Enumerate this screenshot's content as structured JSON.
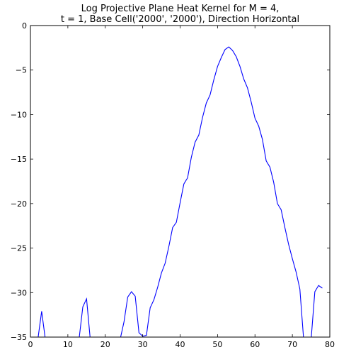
{
  "chart_data": {
    "type": "line",
    "title_lines": [
      "Log Projective Plane Heat Kernel for M = 4,",
      "t = 1, Base Cell('2000', '2000'), Direction Horizontal"
    ],
    "xlabel": "",
    "ylabel": "",
    "xlim": [
      0,
      80
    ],
    "ylim": [
      -35,
      0
    ],
    "xticks": [
      0,
      10,
      20,
      30,
      40,
      50,
      60,
      70,
      80
    ],
    "yticks": [
      0,
      -5,
      -10,
      -15,
      -20,
      -25,
      -30,
      -35
    ],
    "xtick_labels": [
      "0",
      "10",
      "20",
      "30",
      "40",
      "50",
      "60",
      "70",
      "80"
    ],
    "ytick_labels": [
      "0",
      "−5",
      "−10",
      "−15",
      "−20",
      "−25",
      "−30",
      "−35"
    ],
    "grid": false,
    "series": [
      {
        "color": "#0000ff",
        "x": [
          1,
          2,
          3,
          4,
          5,
          6,
          7,
          8,
          9,
          10,
          11,
          12,
          13,
          14,
          15,
          16,
          17,
          18,
          19,
          20,
          21,
          22,
          23,
          24,
          25,
          26,
          27,
          28,
          29,
          30,
          31,
          32,
          33,
          34,
          35,
          36,
          37,
          38,
          39,
          40,
          41,
          42,
          43,
          44,
          45,
          46,
          47,
          48,
          49,
          50,
          51,
          52,
          53,
          54,
          55,
          56,
          57,
          58,
          59,
          60,
          61,
          62,
          63,
          64,
          65,
          66,
          67,
          68,
          69,
          70,
          71,
          72,
          73,
          74,
          75,
          76,
          77,
          78
        ],
        "y": [
          -35.5,
          -35.2,
          -32.1,
          -35.3,
          -35.4,
          -35.5,
          -35.4,
          -35.5,
          -35.3,
          -35.5,
          -35.4,
          -35.3,
          -35.2,
          -31.6,
          -30.7,
          -35.3,
          -35.4,
          -35.5,
          -35.3,
          -35.2,
          -35.4,
          -35.5,
          -35.3,
          -35.2,
          -33.3,
          -30.5,
          -29.9,
          -30.4,
          -34.5,
          -34.9,
          -34.8,
          -31.7,
          -30.8,
          -29.4,
          -27.8,
          -26.7,
          -24.8,
          -22.7,
          -22.1,
          -19.9,
          -17.8,
          -17.1,
          -14.8,
          -13.1,
          -12.3,
          -10.3,
          -8.7,
          -7.8,
          -6.1,
          -4.6,
          -3.6,
          -2.7,
          -2.4,
          -2.8,
          -3.5,
          -4.6,
          -6.0,
          -7.0,
          -8.6,
          -10.4,
          -11.3,
          -12.8,
          -15.2,
          -15.9,
          -17.6,
          -20.0,
          -20.7,
          -22.7,
          -24.6,
          -26.2,
          -27.7,
          -29.6,
          -35.2,
          -35.5,
          -35.3,
          -29.9,
          -29.2,
          -29.5
        ]
      }
    ]
  }
}
